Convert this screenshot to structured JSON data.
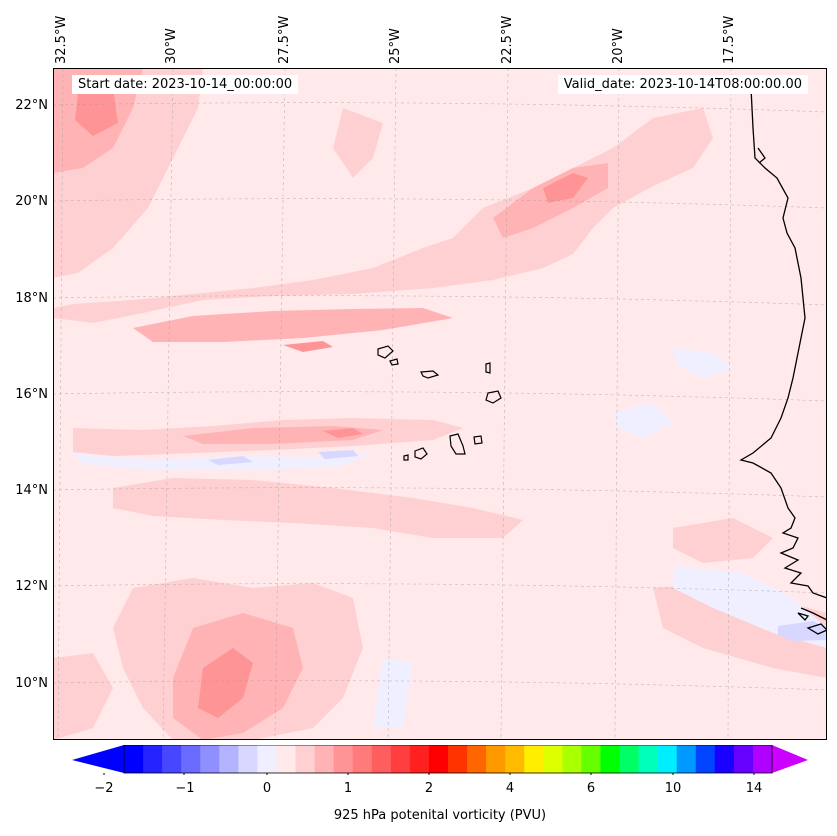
{
  "header": {
    "start_date": "Start date: 2023-10-14_00:00:00",
    "valid_date": "Valid_date: 2023-10-14T08:00:00.00"
  },
  "axes": {
    "longitude_labels": [
      "32.5°W",
      "30°W",
      "27.5°W",
      "25°W",
      "22.5°W",
      "20°W",
      "17.5°W"
    ],
    "latitude_labels": [
      "22°N",
      "20°N",
      "18°N",
      "16°N",
      "14°N",
      "12°N",
      "10°N"
    ]
  },
  "map": {
    "extent": {
      "lon_min": -32.6,
      "lon_max": -15.5,
      "lat_min": 8.9,
      "lat_max": 22.8
    },
    "features": [
      "Cape Verde islands",
      "West African coastline (Mauritania, Senegal, Gambia, Guinea-Bissau)"
    ],
    "background_color": "#ffe9ea"
  },
  "colorbar": {
    "label": "925 hPa potenital vorticity (PVU)",
    "tick_labels": [
      "−2",
      "−1",
      "0",
      "1",
      "2",
      "4",
      "6",
      "10",
      "14"
    ],
    "colors": [
      "#0000ff",
      "#2323ff",
      "#4747ff",
      "#6b6bff",
      "#8f8fff",
      "#b3b3ff",
      "#d7d7ff",
      "#efefff",
      "#ffe9ea",
      "#ffd0d2",
      "#ffb3b4",
      "#ff9496",
      "#ff7a7a",
      "#ff5e5e",
      "#ff3f3f",
      "#ff2020",
      "#ff0000",
      "#ff3300",
      "#ff6600",
      "#ff9900",
      "#ffbb00",
      "#ffee00",
      "#ddff00",
      "#aaff00",
      "#66ff00",
      "#00ff00",
      "#00ff66",
      "#00ffbb",
      "#00eeff",
      "#0099ff",
      "#0044ff",
      "#1a00ff",
      "#6600ff",
      "#b000ff"
    ],
    "under_color": "#0000ff",
    "over_color": "#cc00ff"
  }
}
